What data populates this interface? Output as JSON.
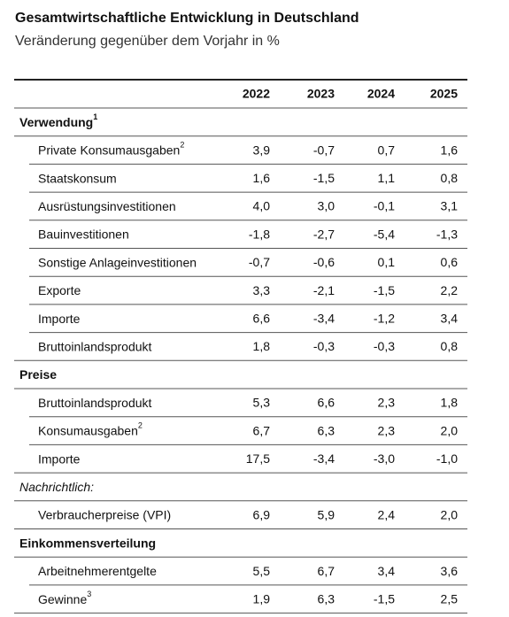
{
  "header": {
    "title": "Gesamtwirtschaftliche Entwicklung in Deutschland",
    "subtitle": "Veränderung gegenüber dem Vorjahr in %"
  },
  "table": {
    "columns": [
      "2022",
      "2023",
      "2024",
      "2025"
    ],
    "sections": [
      {
        "label": "Verwendung",
        "footnote": "1",
        "rows": [
          {
            "label": "Private Konsumausgaben",
            "footnote": "2",
            "values": [
              "3,9",
              "-0,7",
              "0,7",
              "1,6"
            ]
          },
          {
            "label": "Staatskonsum",
            "values": [
              "1,6",
              "-1,5",
              "1,1",
              "0,8"
            ]
          },
          {
            "label": "Ausrüstungsinvestitionen",
            "values": [
              "4,0",
              "3,0",
              "-0,1",
              "3,1"
            ]
          },
          {
            "label": "Bauinvestitionen",
            "values": [
              "-1,8",
              "-2,7",
              "-5,4",
              "-1,3"
            ]
          },
          {
            "label": "Sonstige Anlageinvestitionen",
            "values": [
              "-0,7",
              "-0,6",
              "0,1",
              "0,6"
            ]
          },
          {
            "label": "Exporte",
            "values": [
              "3,3",
              "-2,1",
              "-1,5",
              "2,2"
            ]
          },
          {
            "label": "Importe",
            "values": [
              "6,6",
              "-3,4",
              "-1,2",
              "3,4"
            ]
          },
          {
            "label": "Bruttoinlandsprodukt",
            "values": [
              "1,8",
              "-0,3",
              "-0,3",
              "0,8"
            ]
          }
        ]
      },
      {
        "label": "Preise",
        "rows": [
          {
            "label": "Bruttoinlandsprodukt",
            "values": [
              "5,3",
              "6,6",
              "2,3",
              "1,8"
            ]
          },
          {
            "label": "Konsumausgaben",
            "footnote": "2",
            "values": [
              "6,7",
              "6,3",
              "2,3",
              "2,0"
            ]
          },
          {
            "label": "Importe",
            "values": [
              "17,5",
              "-3,4",
              "-3,0",
              "-1,0"
            ]
          }
        ]
      },
      {
        "label": "Nachrichtlich:",
        "style": "italic",
        "rows": [
          {
            "label": "Verbraucherpreise (VPI)",
            "values": [
              "6,9",
              "5,9",
              "2,4",
              "2,0"
            ]
          }
        ]
      },
      {
        "label": "Einkommensverteilung",
        "rows": [
          {
            "label": "Arbeitnehmerentgelte",
            "values": [
              "5,5",
              "6,7",
              "3,4",
              "3,6"
            ]
          },
          {
            "label": "Gewinne",
            "footnote": "3",
            "values": [
              "1,9",
              "6,3",
              "-1,5",
              "2,5"
            ]
          }
        ]
      }
    ]
  }
}
